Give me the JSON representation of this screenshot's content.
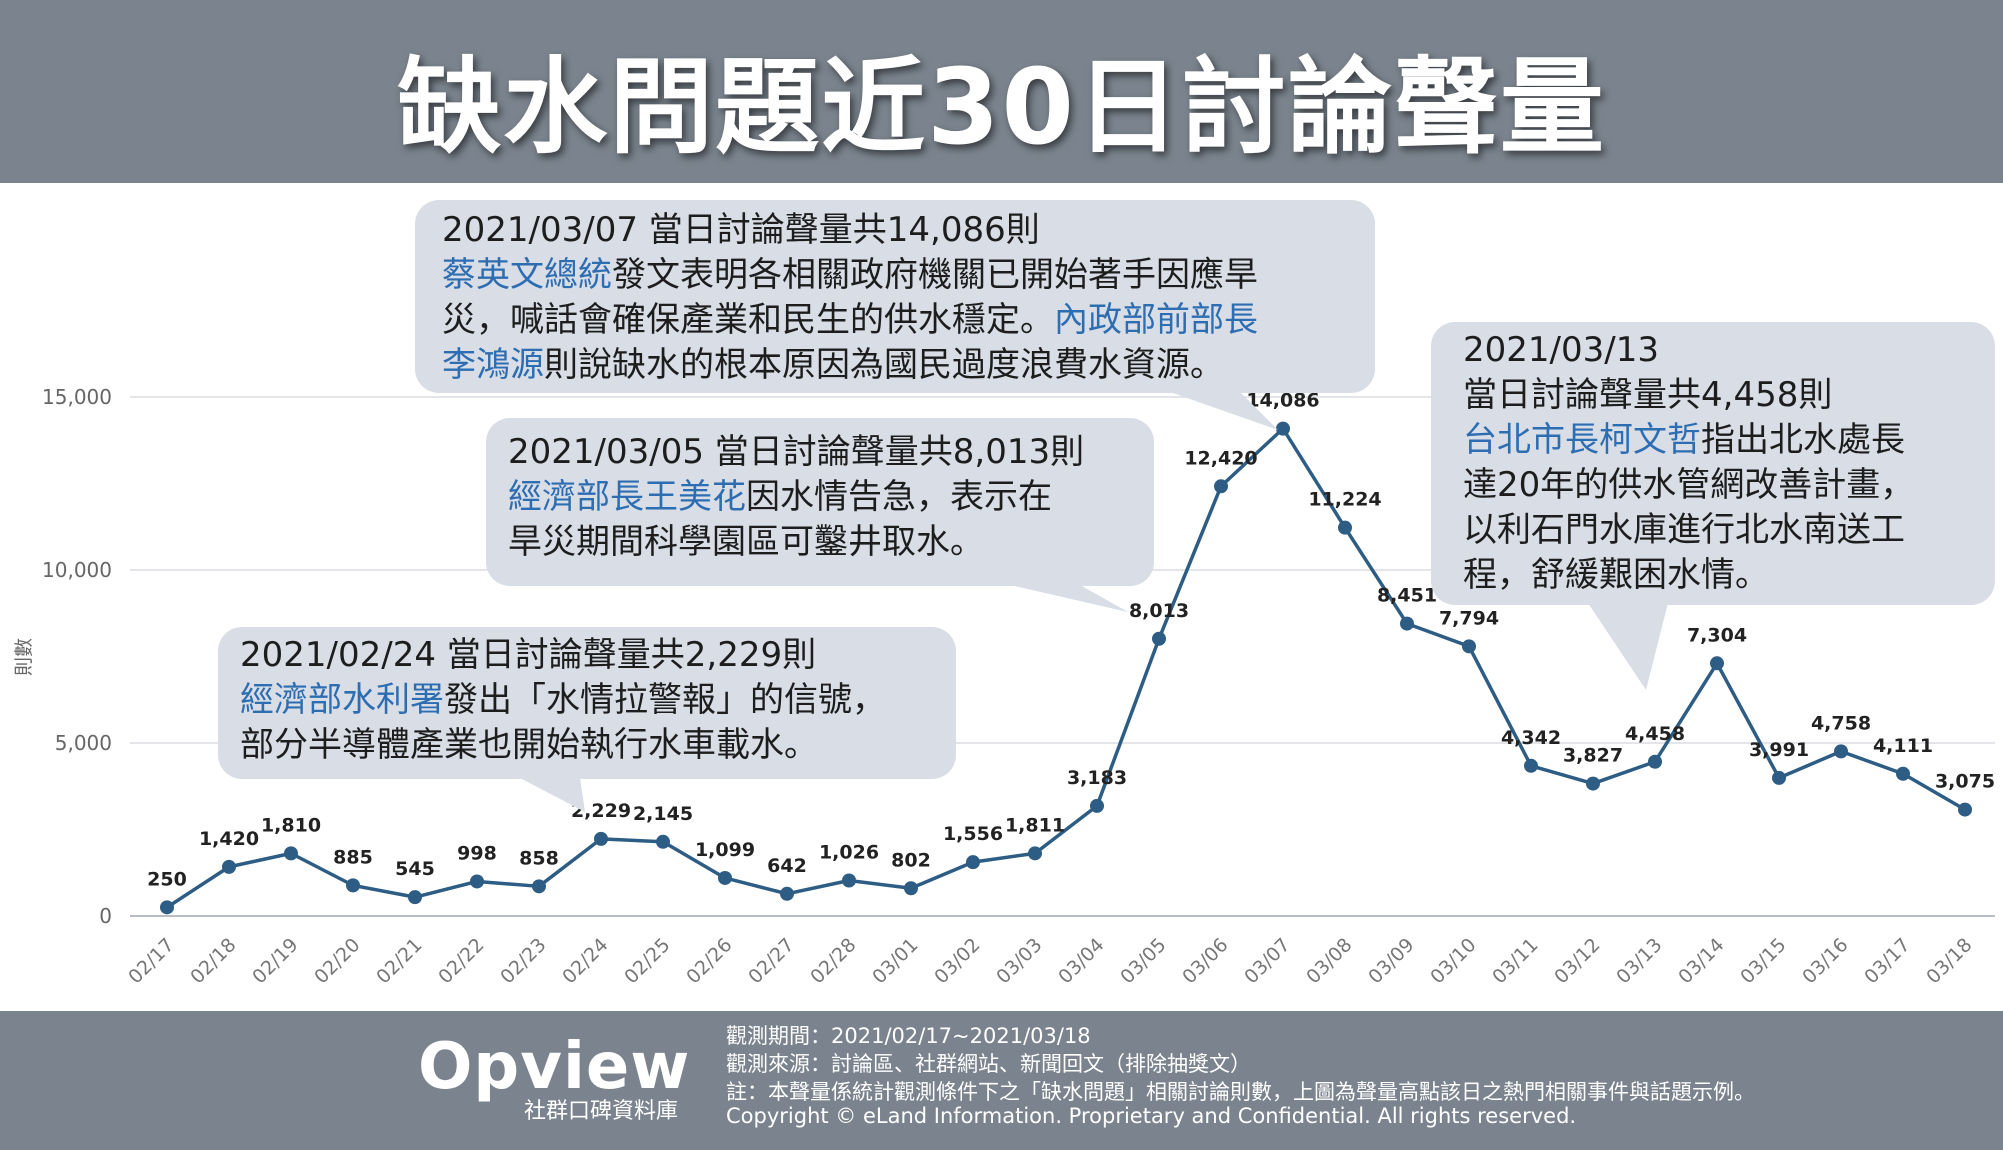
{
  "title": "缺水問題近30日討論聲量",
  "chart_data": {
    "type": "line",
    "categories": [
      "02/17",
      "02/18",
      "02/19",
      "02/20",
      "02/21",
      "02/22",
      "02/23",
      "02/24",
      "02/25",
      "02/26",
      "02/27",
      "02/28",
      "03/01",
      "03/02",
      "03/03",
      "03/04",
      "03/05",
      "03/06",
      "03/07",
      "03/08",
      "03/09",
      "03/10",
      "03/11",
      "03/12",
      "03/13",
      "03/14",
      "03/15",
      "03/16",
      "03/17",
      "03/18"
    ],
    "values": [
      250,
      1420,
      1810,
      885,
      545,
      998,
      858,
      2229,
      2145,
      1099,
      642,
      1026,
      802,
      1556,
      1811,
      3183,
      8013,
      12420,
      14086,
      11224,
      8451,
      7794,
      4342,
      3827,
      4458,
      7304,
      3991,
      4758,
      4111,
      3075
    ],
    "value_labels": [
      "250",
      "1,420",
      "1,810",
      "885",
      "545",
      "998",
      "858",
      "2,229",
      "2,145",
      "1,099",
      "642",
      "1,026",
      "802",
      "1,556",
      "1,811",
      "3,183",
      "8,013",
      "12,420",
      "14,086",
      "11,224",
      "8,451",
      "7,794",
      "4,342",
      "3,827",
      "4,458",
      "7,304",
      "3,991",
      "4,758",
      "4,111",
      "3,075"
    ],
    "ylabel": "則數",
    "ylim": [
      0,
      15000
    ],
    "yticks": [
      0,
      5000,
      10000,
      15000
    ],
    "ytick_labels": [
      "0",
      "5,000",
      "10,000",
      "15,000"
    ],
    "grid": true,
    "line_color": "#2d5d84"
  },
  "annotations": [
    {
      "id": "mar07",
      "lines": [
        [
          {
            "t": "2021/03/07 當日討論聲量共14,086則",
            "hl": false
          }
        ],
        [
          {
            "t": "蔡英文總統",
            "hl": true
          },
          {
            "t": "發文表明各相關政府機關已開始著手因應旱",
            "hl": false
          }
        ],
        [
          {
            "t": "災，喊話會確保產業和民生的供水穩定。",
            "hl": false
          },
          {
            "t": "內政部前部長",
            "hl": true
          }
        ],
        [
          {
            "t": "李鴻源",
            "hl": true
          },
          {
            "t": "則說缺水的根本原因為國民過度浪費水資源。",
            "hl": false
          }
        ]
      ]
    },
    {
      "id": "mar05",
      "lines": [
        [
          {
            "t": "2021/03/05 當日討論聲量共8,013則",
            "hl": false
          }
        ],
        [
          {
            "t": "經濟部長王美花",
            "hl": true
          },
          {
            "t": "因水情告急，表示在",
            "hl": false
          }
        ],
        [
          {
            "t": "旱災期間科學園區可鑿井取水。",
            "hl": false
          }
        ]
      ]
    },
    {
      "id": "feb24",
      "lines": [
        [
          {
            "t": "2021/02/24 當日討論聲量共2,229則",
            "hl": false
          }
        ],
        [
          {
            "t": "經濟部水利署",
            "hl": true
          },
          {
            "t": "發出「水情拉警報」的信號，",
            "hl": false
          }
        ],
        [
          {
            "t": "部分半導體產業也開始執行水車載水。",
            "hl": false
          }
        ]
      ]
    },
    {
      "id": "mar13",
      "lines": [
        [
          {
            "t": "2021/03/13",
            "hl": false
          }
        ],
        [
          {
            "t": "當日討論聲量共4,458則",
            "hl": false
          }
        ],
        [
          {
            "t": "台北市長柯文哲",
            "hl": true
          },
          {
            "t": "指出北水處長",
            "hl": false
          }
        ],
        [
          {
            "t": "達20年的供水管網改善計畫，",
            "hl": false
          }
        ],
        [
          {
            "t": "以利石門水庫進行北水南送工",
            "hl": false
          }
        ],
        [
          {
            "t": "程，舒緩艱困水情。",
            "hl": false
          }
        ]
      ]
    }
  ],
  "footer": {
    "logo": "Opview",
    "logo_sub": "社群口碑資料庫",
    "period": "觀測期間：2021/02/17~2021/03/18",
    "source": "觀測來源：討論區、社群網站、新聞回文（排除抽獎文）",
    "note": "註：本聲量係統計觀測條件下之「缺水問題」相關討論則數，上圖為聲量高點該日之熱門相關事件與話題示例。",
    "copyright": "Copyright © eLand Information. Proprietary and Confidential. All rights reserved."
  }
}
